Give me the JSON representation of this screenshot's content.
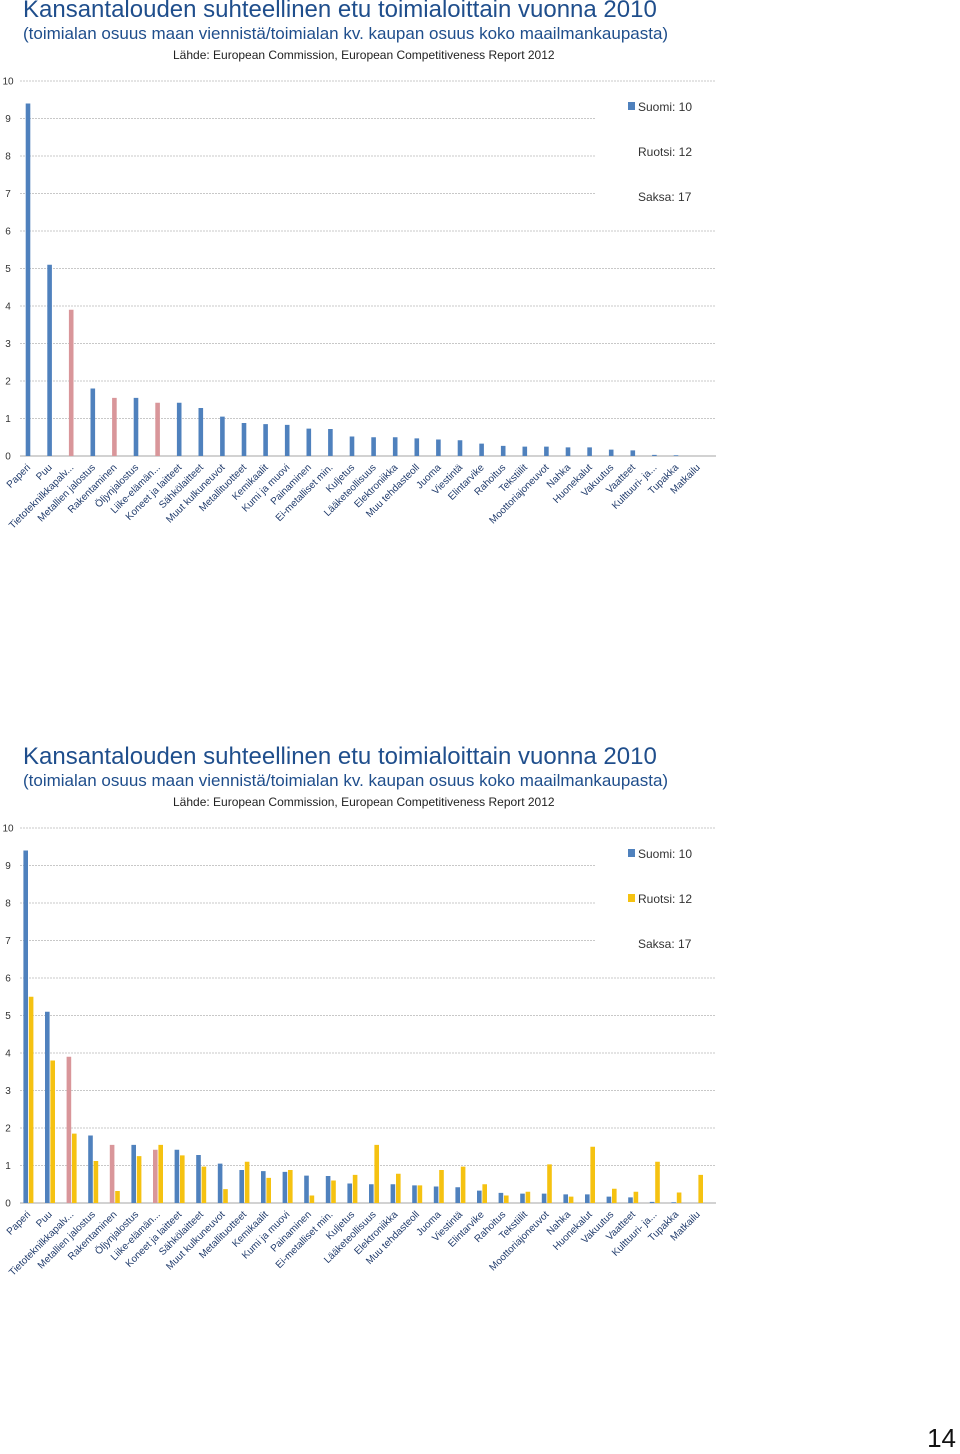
{
  "colors": {
    "finland": "#4f81bd",
    "finland_highlight": "#d9969a",
    "sweden": "#f5c211",
    "grid": "#c8c8c8",
    "axis": "#a6a6a6"
  },
  "page_number": "14",
  "chart_data": [
    {
      "type": "bar",
      "title": "Kansantalouden suhteellinen etu toimialoittain vuonna 2010",
      "subtitle": "(toimialan osuus maan viennistä/toimialan kv. kaupan osuus koko maailmankaupasta)",
      "source": "Lähde: European Commission, European Competitiveness Report 2012",
      "ylim": [
        0,
        10
      ],
      "yticks": [
        0,
        1,
        2,
        3,
        4,
        5,
        6,
        7,
        8,
        9,
        10
      ],
      "grid": true,
      "legend_position": "right",
      "legend": [
        {
          "label": "Suomi: 10",
          "swatch": true,
          "color": "#4f81bd"
        },
        {
          "label": "Ruotsi: 12",
          "swatch": false,
          "color": ""
        },
        {
          "label": "Saksa: 17",
          "swatch": false,
          "color": ""
        }
      ],
      "categories": [
        "Paperi",
        "Puu",
        "Tietoteknilkkapalv...",
        "Metallien jalostus",
        "Rakentaminen",
        "Öljynjalostus",
        "Liike-elämän...",
        "Koneet ja laitteet",
        "Sähkölaitteet",
        "Muut kulkuneuvot",
        "Metallituotteet",
        "Kemikaalit",
        "Kumi ja muovi",
        "Painaminen",
        "Ei-metalliset min.",
        "Kuljetus",
        "Lääketeollisuus",
        "Elektroniikka",
        "Muu tehdasteoll",
        "Juoma",
        "Viestintä",
        "Elintarvike",
        "Rahoitus",
        "Tekstiilit",
        "Moottoriajoneuvot",
        "Nahka",
        "Huonekalut",
        "Vakuutus",
        "Vaatteet",
        "Kulttuuri- ja...",
        "Tupakka",
        "Matkailu"
      ],
      "highlight_indices": [
        2,
        4,
        6
      ],
      "series": [
        {
          "name": "Suomi",
          "values": [
            9.4,
            5.1,
            3.9,
            1.8,
            1.55,
            1.55,
            1.42,
            1.42,
            1.28,
            1.05,
            0.88,
            0.85,
            0.83,
            0.73,
            0.72,
            0.52,
            0.5,
            0.5,
            0.47,
            0.44,
            0.42,
            0.33,
            0.27,
            0.25,
            0.25,
            0.23,
            0.23,
            0.17,
            0.15,
            0.03,
            0.02,
            0.0
          ]
        }
      ]
    },
    {
      "type": "bar",
      "title": "Kansantalouden suhteellinen etu toimialoittain vuonna 2010",
      "subtitle": "(toimialan osuus maan viennistä/toimialan kv. kaupan osuus koko maailmankaupasta)",
      "source": "Lähde: European Commission, European Competitiveness Report 2012",
      "ylim": [
        0,
        10
      ],
      "yticks": [
        0,
        1,
        2,
        3,
        4,
        5,
        6,
        7,
        8,
        9,
        10
      ],
      "grid": true,
      "legend_position": "right",
      "legend": [
        {
          "label": "Suomi: 10",
          "swatch": true,
          "color": "#4f81bd"
        },
        {
          "label": "Ruotsi: 12",
          "swatch": true,
          "color": "#f5c211"
        },
        {
          "label": "Saksa: 17",
          "swatch": false,
          "color": ""
        }
      ],
      "categories": [
        "Paperi",
        "Puu",
        "Tietoteknilkkapalv...",
        "Metallien jalostus",
        "Rakentaminen",
        "Öljynjalostus",
        "Liike-elämän...",
        "Koneet ja laitteet",
        "Sähkölaitteet",
        "Muut kulkuneuvot",
        "Metallituotteet",
        "Kemikaalit",
        "Kumi ja muovi",
        "Painaminen",
        "Ei-metalliset min.",
        "Kuljetus",
        "Lääketeollisuus",
        "Elektroniikka",
        "Muu tehdasteoll",
        "Juoma",
        "Viestintä",
        "Elintarvike",
        "Rahoitus",
        "Tekstiilit",
        "Moottoriajoneuvot",
        "Nahka",
        "Huonekalut",
        "Vakuutus",
        "Vaatteet",
        "Kulttuuri- ja...",
        "Tupakka",
        "Matkailu"
      ],
      "highlight_indices": [
        2,
        4,
        6
      ],
      "series": [
        {
          "name": "Suomi",
          "values": [
            9.4,
            5.1,
            3.9,
            1.8,
            1.55,
            1.55,
            1.42,
            1.42,
            1.28,
            1.05,
            0.88,
            0.85,
            0.83,
            0.73,
            0.72,
            0.52,
            0.5,
            0.5,
            0.47,
            0.44,
            0.42,
            0.33,
            0.27,
            0.25,
            0.25,
            0.23,
            0.23,
            0.17,
            0.15,
            0.03,
            0.02,
            0.0
          ]
        },
        {
          "name": "Ruotsi",
          "values": [
            5.5,
            3.8,
            1.85,
            1.12,
            0.32,
            1.25,
            1.55,
            1.27,
            0.97,
            0.37,
            1.1,
            0.67,
            0.88,
            0.2,
            0.6,
            0.75,
            1.55,
            0.78,
            0.47,
            0.88,
            0.97,
            0.5,
            0.2,
            0.3,
            1.03,
            0.17,
            1.5,
            0.38,
            0.3,
            1.1,
            0.28,
            0.75
          ]
        }
      ]
    }
  ]
}
